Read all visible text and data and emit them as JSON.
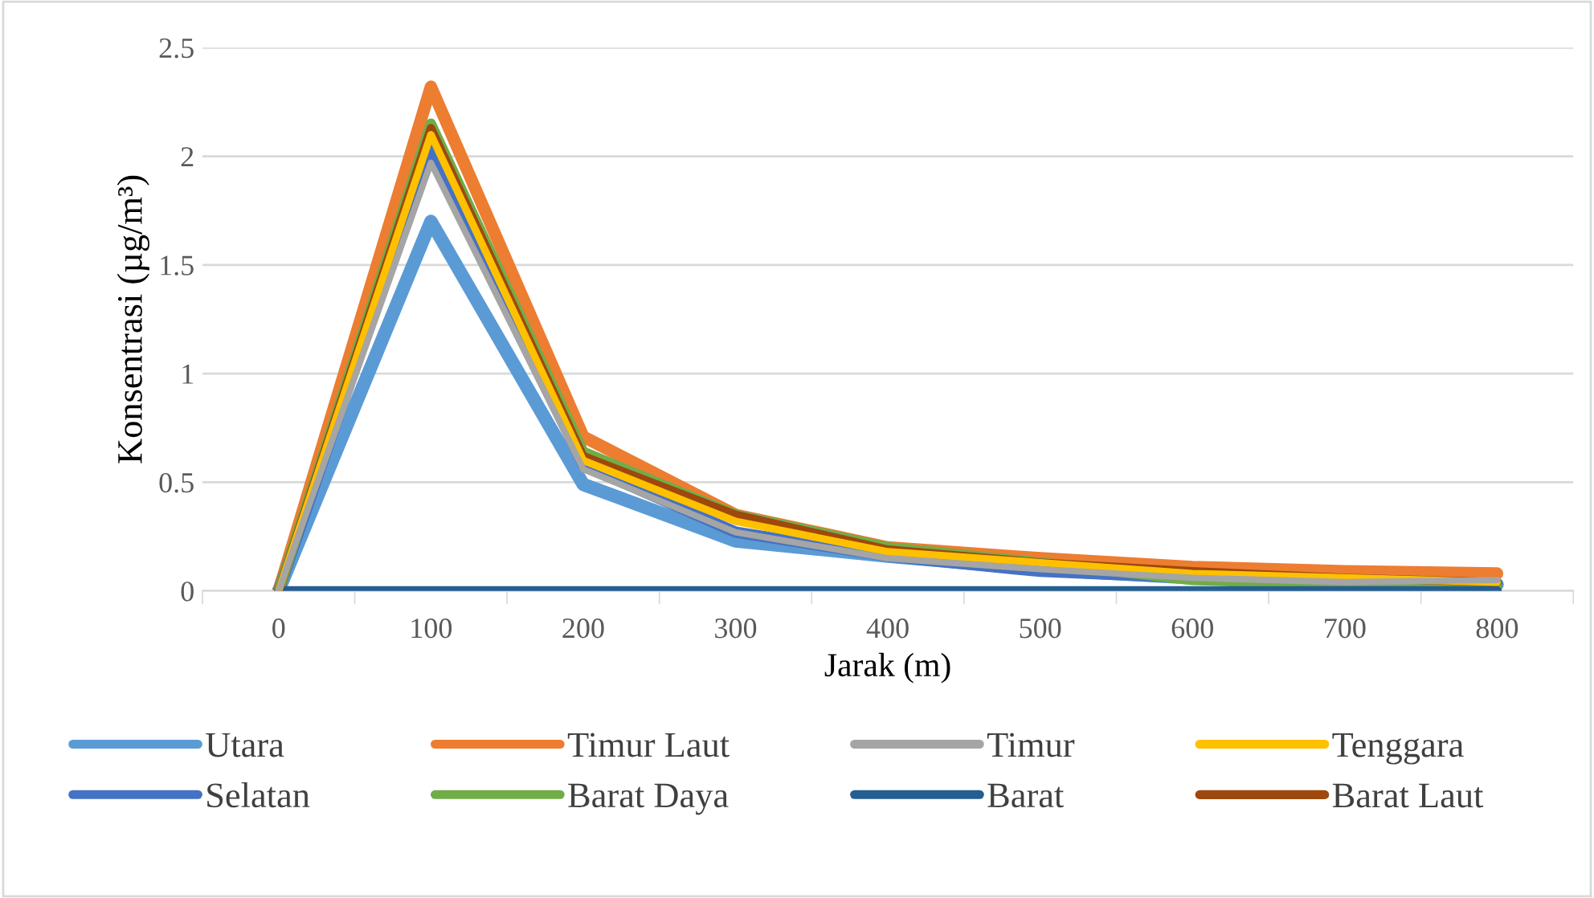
{
  "chart_data": {
    "type": "line",
    "xlabel": "Jarak (m)",
    "ylabel": "Konsentrasi (µg/m³)",
    "categories": [
      "0",
      "100",
      "200",
      "300",
      "400",
      "500",
      "600",
      "700",
      "800"
    ],
    "ylim": [
      0,
      2.5
    ],
    "yticks": [
      0,
      0.5,
      1,
      {
        "value": 1.5,
        "label": "1.5"
      },
      2,
      {
        "value": 2.5,
        "label": "2.5"
      }
    ],
    "grid": "y",
    "legend": "bottom",
    "marker": "none",
    "line_style": "solid",
    "series": [
      {
        "name": "Utara",
        "color": "#5b9bd5",
        "values": [
          0,
          1.7,
          0.49,
          0.23,
          0.16,
          0.1,
          0.06,
          0.04,
          0.03
        ]
      },
      {
        "name": "Timur Laut",
        "color": "#ed7d31",
        "values": [
          0,
          2.32,
          0.71,
          0.35,
          0.2,
          0.15,
          0.11,
          0.09,
          0.08
        ]
      },
      {
        "name": "Timur",
        "color": "#a5a5a5",
        "values": [
          0,
          1.97,
          0.56,
          0.27,
          0.15,
          0.1,
          0.06,
          0.04,
          0.05
        ]
      },
      {
        "name": "Tenggara",
        "color": "#ffc000",
        "values": [
          0,
          2.1,
          0.6,
          0.32,
          0.18,
          0.13,
          0.08,
          0.06,
          0.04
        ]
      },
      {
        "name": "Selatan",
        "color": "#4472c4",
        "values": [
          0,
          2.05,
          0.58,
          0.27,
          0.16,
          0.09,
          0.06,
          0.04,
          0.03
        ]
      },
      {
        "name": "Barat Daya",
        "color": "#70ad47",
        "values": [
          0,
          2.15,
          0.64,
          0.35,
          0.2,
          0.13,
          0.05,
          0.03,
          0.02
        ]
      },
      {
        "name": "Barat",
        "color": "#255e91",
        "values": [
          0,
          0,
          0,
          0,
          0,
          0,
          0,
          0,
          0
        ]
      },
      {
        "name": "Barat Laut",
        "color": "#9e480e",
        "values": [
          0,
          2.13,
          0.62,
          0.35,
          0.19,
          0.13,
          0.09,
          0.06,
          0.04
        ]
      }
    ]
  }
}
